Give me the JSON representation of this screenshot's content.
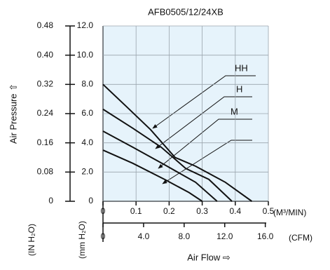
{
  "chart_data": {
    "type": "line",
    "title": "AFB0505/12/24XB",
    "y_label": "Air Pressure ⇧",
    "y_unit_label": "(mm H₂O)",
    "y2_unit_label": "(IN H₂O)",
    "x_label": "Air Flow ⇨",
    "x_unit_label": "(M³/MIN)",
    "x2_unit_label": "(CFM)",
    "xlim": [
      0,
      0.5
    ],
    "xticks": [
      0,
      0.1,
      0.2,
      0.3,
      0.4,
      0.5
    ],
    "x2lim": [
      0,
      16.3
    ],
    "x2ticks": [
      0,
      {
        "value": 4,
        "label": "4.0"
      },
      {
        "value": 8,
        "label": "8.0"
      },
      {
        "value": 12,
        "label": "12.0"
      },
      {
        "value": 16,
        "label": "16.0"
      }
    ],
    "ylim": [
      0,
      12
    ],
    "yticks": [
      0,
      {
        "value": 2,
        "label": "2.0"
      },
      {
        "value": 4,
        "label": "4.0"
      },
      {
        "value": 6,
        "label": "6.0"
      },
      {
        "value": 8,
        "label": "8.0"
      },
      {
        "value": 10,
        "label": "10.0"
      },
      {
        "value": 12,
        "label": "12.0"
      }
    ],
    "y2lim": [
      0,
      0.48
    ],
    "y2ticks": [
      0,
      0.08,
      0.16,
      0.24,
      0.32,
      {
        "value": 0.4,
        "label": "0.40"
      },
      0.48
    ],
    "grid": true,
    "background": "#e6f3fb",
    "series": [
      {
        "name": "HH",
        "color": "#111111",
        "x": [
          0,
          0.07,
          0.144,
          0.218,
          0.28,
          0.37,
          0.45
        ],
        "values": [
          8.0,
          6.5,
          4.9,
          3.0,
          2.4,
          1.3,
          0
        ]
      },
      {
        "name": "H",
        "color": "#111111",
        "x": [
          0,
          0.09,
          0.176,
          0.25,
          0.32,
          0.39
        ],
        "values": [
          6.3,
          5.0,
          3.7,
          2.25,
          1.5,
          0
        ]
      },
      {
        "name": "M",
        "color": "#111111",
        "x": [
          0,
          0.09,
          0.186,
          0.28,
          0.345
        ],
        "values": [
          4.8,
          3.7,
          2.5,
          1.3,
          0
        ]
      },
      {
        "color": "#111111",
        "x": [
          0,
          0.09,
          0.186,
          0.26,
          0.3
        ],
        "values": [
          3.5,
          2.6,
          1.5,
          0.6,
          0
        ]
      }
    ]
  }
}
